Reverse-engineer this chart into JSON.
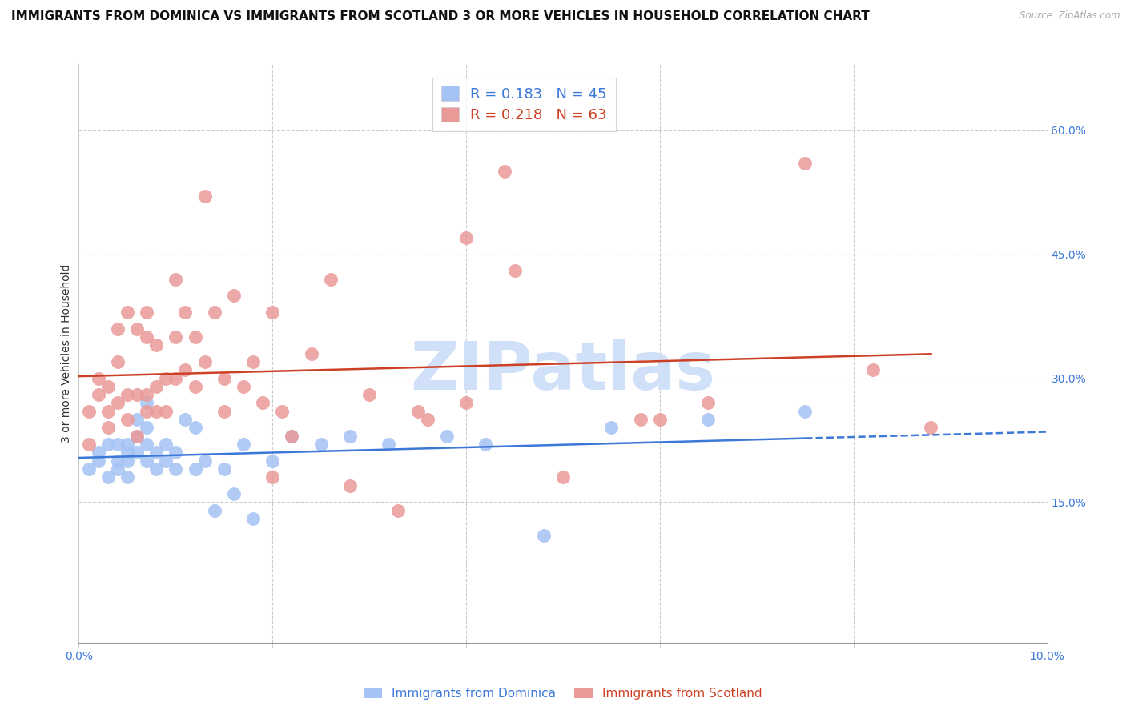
{
  "title": "IMMIGRANTS FROM DOMINICA VS IMMIGRANTS FROM SCOTLAND 3 OR MORE VEHICLES IN HOUSEHOLD CORRELATION CHART",
  "source": "Source: ZipAtlas.com",
  "ylabel": "3 or more Vehicles in Household",
  "right_ytick_labels": [
    "15.0%",
    "30.0%",
    "45.0%",
    "60.0%"
  ],
  "right_ytick_vals": [
    0.15,
    0.3,
    0.45,
    0.6
  ],
  "xlim": [
    0.0,
    0.1
  ],
  "ylim": [
    -0.02,
    0.68
  ],
  "dominica_R": 0.183,
  "dominica_N": 45,
  "scotland_R": 0.218,
  "scotland_N": 63,
  "dominica_color": "#a4c2f4",
  "scotland_color": "#ea9999",
  "dominica_line_color": "#3c78d8",
  "scotland_line_color": "#cc4125",
  "background_color": "#ffffff",
  "grid_color": "#cccccc",
  "watermark_text": "ZIPatlas",
  "watermark_color": "#d0e0f8",
  "title_fontsize": 11,
  "axis_label_fontsize": 10,
  "tick_fontsize": 10,
  "legend_fontsize": 13,
  "dominica_x": [
    0.001,
    0.002,
    0.002,
    0.003,
    0.003,
    0.004,
    0.004,
    0.004,
    0.005,
    0.005,
    0.005,
    0.005,
    0.006,
    0.006,
    0.006,
    0.007,
    0.007,
    0.007,
    0.007,
    0.008,
    0.008,
    0.009,
    0.009,
    0.01,
    0.01,
    0.011,
    0.012,
    0.012,
    0.013,
    0.014,
    0.015,
    0.016,
    0.017,
    0.018,
    0.02,
    0.022,
    0.025,
    0.028,
    0.032,
    0.038,
    0.042,
    0.048,
    0.055,
    0.065,
    0.075
  ],
  "dominica_y": [
    0.19,
    0.21,
    0.2,
    0.22,
    0.18,
    0.2,
    0.22,
    0.19,
    0.21,
    0.2,
    0.18,
    0.22,
    0.23,
    0.25,
    0.21,
    0.27,
    0.24,
    0.2,
    0.22,
    0.19,
    0.21,
    0.2,
    0.22,
    0.19,
    0.21,
    0.25,
    0.24,
    0.19,
    0.2,
    0.14,
    0.19,
    0.16,
    0.22,
    0.13,
    0.2,
    0.23,
    0.22,
    0.23,
    0.22,
    0.23,
    0.22,
    0.11,
    0.24,
    0.25,
    0.26
  ],
  "scotland_x": [
    0.001,
    0.001,
    0.002,
    0.002,
    0.003,
    0.003,
    0.003,
    0.004,
    0.004,
    0.004,
    0.005,
    0.005,
    0.005,
    0.006,
    0.006,
    0.006,
    0.007,
    0.007,
    0.007,
    0.007,
    0.008,
    0.008,
    0.008,
    0.009,
    0.009,
    0.01,
    0.01,
    0.01,
    0.011,
    0.011,
    0.012,
    0.012,
    0.013,
    0.013,
    0.014,
    0.015,
    0.015,
    0.016,
    0.017,
    0.018,
    0.019,
    0.02,
    0.021,
    0.022,
    0.024,
    0.026,
    0.028,
    0.03,
    0.033,
    0.036,
    0.04,
    0.044,
    0.05,
    0.058,
    0.065,
    0.075,
    0.082,
    0.088,
    0.04,
    0.02,
    0.035,
    0.045,
    0.06
  ],
  "scotland_y": [
    0.22,
    0.26,
    0.28,
    0.3,
    0.26,
    0.29,
    0.24,
    0.32,
    0.36,
    0.27,
    0.38,
    0.28,
    0.25,
    0.36,
    0.28,
    0.23,
    0.38,
    0.35,
    0.28,
    0.26,
    0.34,
    0.29,
    0.26,
    0.3,
    0.26,
    0.42,
    0.35,
    0.3,
    0.38,
    0.31,
    0.35,
    0.29,
    0.52,
    0.32,
    0.38,
    0.3,
    0.26,
    0.4,
    0.29,
    0.32,
    0.27,
    0.38,
    0.26,
    0.23,
    0.33,
    0.42,
    0.17,
    0.28,
    0.14,
    0.25,
    0.47,
    0.55,
    0.18,
    0.25,
    0.27,
    0.56,
    0.31,
    0.24,
    0.27,
    0.18,
    0.26,
    0.43,
    0.25
  ]
}
